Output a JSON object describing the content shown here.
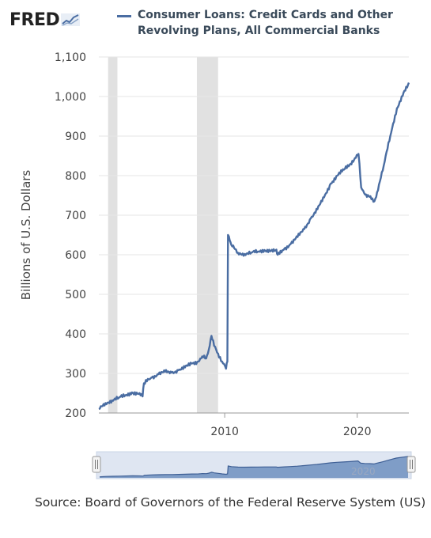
{
  "header": {
    "logo_text": "FRED",
    "legend_label": "Consumer Loans: Credit Cards and Other Revolving Plans, All Commercial Banks"
  },
  "source_text": "Source: Board of Governors of the Federal Reserve System (US)",
  "navigator": {
    "year_label": "2020"
  },
  "colors": {
    "series": "#4a6da2",
    "recession": "#e1e1e1",
    "navigator_fill": "#6f8fbf",
    "navigator_bg": "#dfe6f2"
  },
  "chart_data": {
    "type": "line",
    "title": "",
    "xlabel": "",
    "ylabel": "Billions of U.S. Dollars",
    "ylim": [
      200,
      1100
    ],
    "xlim": [
      2000.5,
      2023.9
    ],
    "yticks": [
      200,
      300,
      400,
      500,
      600,
      700,
      800,
      900,
      1000,
      1100
    ],
    "ytick_labels": [
      "200",
      "300",
      "400",
      "500",
      "600",
      "700",
      "800",
      "900",
      "1,000",
      "1,100"
    ],
    "xticks": [
      2010,
      2020
    ],
    "xtick_labels": [
      "2010",
      "2020"
    ],
    "grid": "horizontal",
    "recessions": [
      [
        2001.2,
        2001.9
      ],
      [
        2007.9,
        2009.5
      ]
    ],
    "series": [
      {
        "name": "Consumer Loans: Credit Cards and Other Revolving Plans, All Commercial Banks",
        "x": [
          2000.5,
          2001.0,
          2001.5,
          2002.0,
          2002.5,
          2003.0,
          2003.5,
          2003.8,
          2003.9,
          2004.5,
          2005.0,
          2005.5,
          2006.0,
          2006.5,
          2007.0,
          2007.5,
          2008.0,
          2008.3,
          2008.6,
          2008.8,
          2009.0,
          2009.2,
          2009.5,
          2009.8,
          2010.1,
          2010.2,
          2010.25,
          2010.5,
          2011.0,
          2011.5,
          2012.0,
          2012.5,
          2013.0,
          2013.5,
          2013.9,
          2014.0,
          2014.5,
          2015.0,
          2015.5,
          2016.0,
          2016.5,
          2017.0,
          2017.5,
          2018.0,
          2018.5,
          2019.0,
          2019.5,
          2019.9,
          2020.1,
          2020.3,
          2020.6,
          2021.0,
          2021.3,
          2021.5,
          2022.0,
          2022.5,
          2023.0,
          2023.5,
          2023.9
        ],
        "values": [
          210,
          225,
          232,
          238,
          245,
          252,
          248,
          242,
          275,
          290,
          298,
          304,
          302,
          308,
          315,
          325,
          330,
          343,
          338,
          360,
          395,
          370,
          350,
          330,
          312,
          330,
          650,
          625,
          605,
          602,
          605,
          608,
          612,
          610,
          613,
          600,
          615,
          628,
          645,
          665,
          692,
          715,
          745,
          780,
          800,
          815,
          830,
          845,
          855,
          770,
          752,
          748,
          735,
          758,
          825,
          900,
          970,
          1010,
          1035
        ]
      }
    ]
  }
}
